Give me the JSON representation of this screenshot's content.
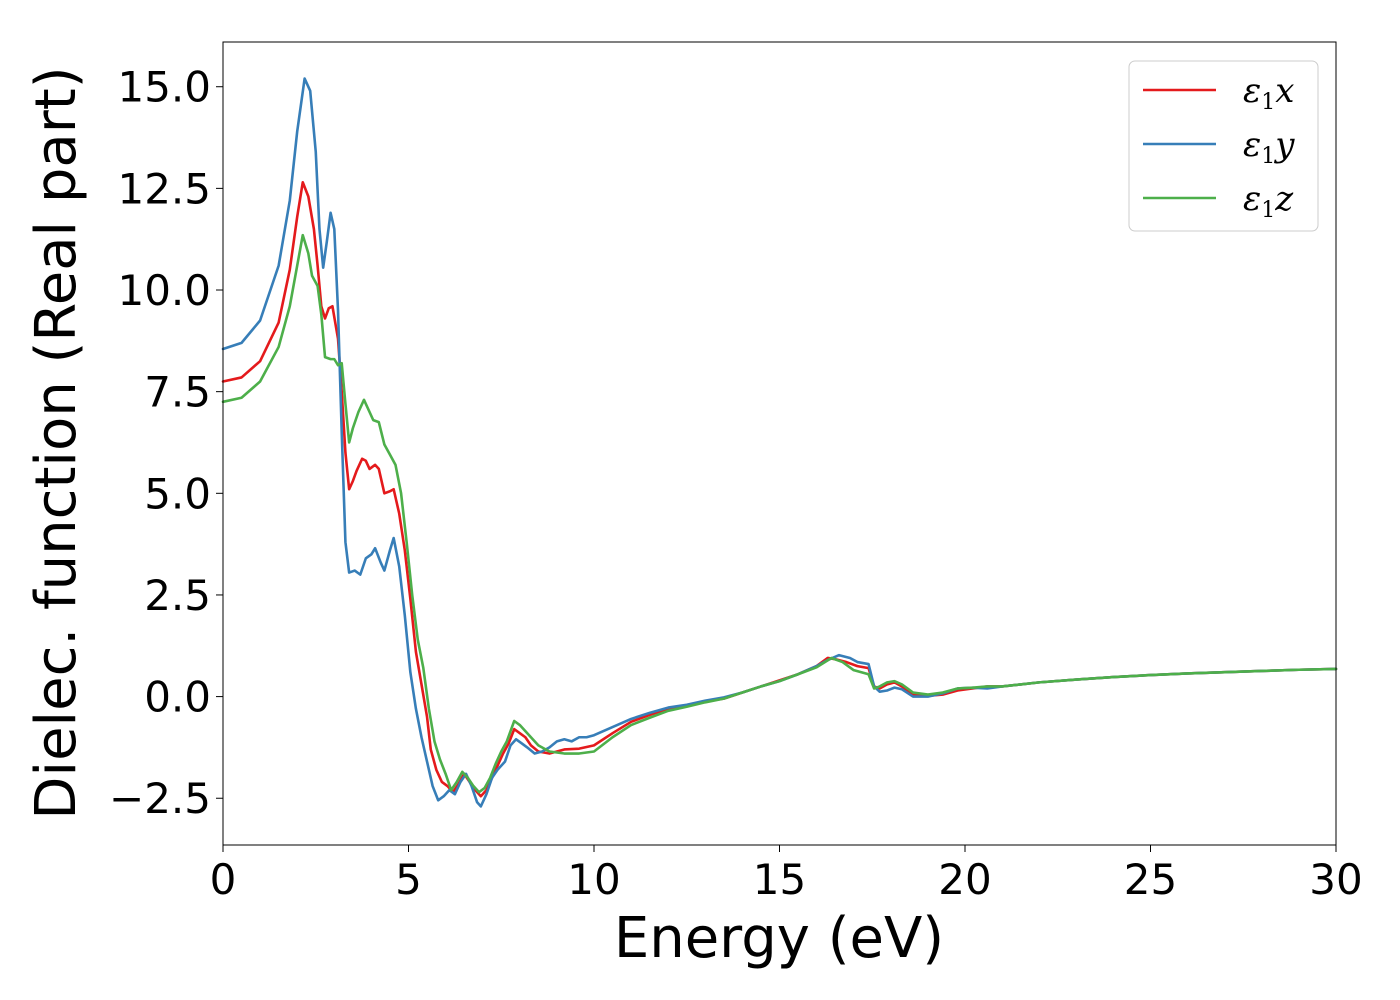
{
  "chart_data": {
    "type": "line",
    "xlabel": "Energy (eV)",
    "ylabel": "Dielec. function (Real part)",
    "xlim": [
      0,
      30
    ],
    "ylim": [
      -3.65,
      16.1
    ],
    "xticks": [
      0,
      5,
      10,
      15,
      20,
      25,
      30
    ],
    "xtick_labels": [
      "0",
      "5",
      "10",
      "15",
      "20",
      "25",
      "30"
    ],
    "yticks": [
      -2.5,
      0,
      2.5,
      5,
      7.5,
      10,
      12.5,
      15
    ],
    "ytick_labels": [
      "−2.5",
      "0.0",
      "2.5",
      "5.0",
      "7.5",
      "10.0",
      "12.5",
      "15.0"
    ],
    "grid": false,
    "legend_position": "top-right",
    "series": [
      {
        "name_base": "ε",
        "name_sub": "1",
        "name_suffix": "x",
        "color": "#e41a1c",
        "points": [
          [
            0,
            7.75
          ],
          [
            0.5,
            7.85
          ],
          [
            1.0,
            8.25
          ],
          [
            1.5,
            9.2
          ],
          [
            1.8,
            10.5
          ],
          [
            2.0,
            11.8
          ],
          [
            2.15,
            12.65
          ],
          [
            2.3,
            12.3
          ],
          [
            2.45,
            11.5
          ],
          [
            2.55,
            10.6
          ],
          [
            2.65,
            9.6
          ],
          [
            2.75,
            9.3
          ],
          [
            2.85,
            9.55
          ],
          [
            2.95,
            9.6
          ],
          [
            3.1,
            8.8
          ],
          [
            3.2,
            7.5
          ],
          [
            3.3,
            6.0
          ],
          [
            3.4,
            5.1
          ],
          [
            3.5,
            5.3
          ],
          [
            3.6,
            5.55
          ],
          [
            3.75,
            5.85
          ],
          [
            3.85,
            5.8
          ],
          [
            3.95,
            5.6
          ],
          [
            4.1,
            5.7
          ],
          [
            4.2,
            5.6
          ],
          [
            4.35,
            5.0
          ],
          [
            4.5,
            5.05
          ],
          [
            4.6,
            5.1
          ],
          [
            4.75,
            4.5
          ],
          [
            4.9,
            3.6
          ],
          [
            5.05,
            2.4
          ],
          [
            5.2,
            1.1
          ],
          [
            5.35,
            0.3
          ],
          [
            5.5,
            -0.5
          ],
          [
            5.6,
            -1.3
          ],
          [
            5.75,
            -1.8
          ],
          [
            5.9,
            -2.1
          ],
          [
            6.05,
            -2.2
          ],
          [
            6.2,
            -2.35
          ],
          [
            6.35,
            -2.15
          ],
          [
            6.5,
            -1.9
          ],
          [
            6.65,
            -2.1
          ],
          [
            6.8,
            -2.3
          ],
          [
            6.95,
            -2.45
          ],
          [
            7.1,
            -2.3
          ],
          [
            7.25,
            -2.0
          ],
          [
            7.4,
            -1.7
          ],
          [
            7.55,
            -1.4
          ],
          [
            7.7,
            -1.15
          ],
          [
            7.85,
            -0.8
          ],
          [
            8.0,
            -0.9
          ],
          [
            8.15,
            -1.0
          ],
          [
            8.3,
            -1.2
          ],
          [
            8.5,
            -1.35
          ],
          [
            8.8,
            -1.4
          ],
          [
            9.2,
            -1.3
          ],
          [
            9.6,
            -1.28
          ],
          [
            10.0,
            -1.2
          ],
          [
            10.5,
            -0.9
          ],
          [
            11.0,
            -0.62
          ],
          [
            11.5,
            -0.45
          ],
          [
            12.0,
            -0.3
          ],
          [
            12.5,
            -0.22
          ],
          [
            13.0,
            -0.12
          ],
          [
            13.5,
            -0.05
          ],
          [
            14.0,
            0.1
          ],
          [
            14.5,
            0.25
          ],
          [
            15.0,
            0.4
          ],
          [
            15.5,
            0.55
          ],
          [
            16.0,
            0.75
          ],
          [
            16.3,
            0.95
          ],
          [
            16.5,
            0.92
          ],
          [
            16.8,
            0.85
          ],
          [
            17.1,
            0.75
          ],
          [
            17.4,
            0.7
          ],
          [
            17.55,
            0.25
          ],
          [
            17.7,
            0.2
          ],
          [
            17.9,
            0.3
          ],
          [
            18.1,
            0.35
          ],
          [
            18.3,
            0.25
          ],
          [
            18.6,
            0.05
          ],
          [
            19.0,
            0.02
          ],
          [
            19.4,
            0.05
          ],
          [
            19.8,
            0.15
          ],
          [
            20.2,
            0.2
          ],
          [
            20.6,
            0.25
          ],
          [
            21.0,
            0.25
          ],
          [
            21.5,
            0.3
          ],
          [
            22.0,
            0.35
          ],
          [
            23.0,
            0.42
          ],
          [
            24.0,
            0.48
          ],
          [
            25.0,
            0.53
          ],
          [
            26.0,
            0.57
          ],
          [
            27.0,
            0.6
          ],
          [
            28.0,
            0.63
          ],
          [
            29.0,
            0.66
          ],
          [
            30.0,
            0.68
          ]
        ]
      },
      {
        "name_base": "ε",
        "name_sub": "1",
        "name_suffix": "y",
        "color": "#377eb8",
        "points": [
          [
            0,
            8.55
          ],
          [
            0.5,
            8.7
          ],
          [
            1.0,
            9.25
          ],
          [
            1.5,
            10.6
          ],
          [
            1.8,
            12.2
          ],
          [
            2.0,
            13.9
          ],
          [
            2.2,
            15.2
          ],
          [
            2.35,
            14.9
          ],
          [
            2.5,
            13.4
          ],
          [
            2.6,
            11.5
          ],
          [
            2.7,
            10.55
          ],
          [
            2.8,
            11.2
          ],
          [
            2.9,
            11.9
          ],
          [
            3.0,
            11.5
          ],
          [
            3.1,
            9.5
          ],
          [
            3.2,
            6.5
          ],
          [
            3.3,
            3.8
          ],
          [
            3.4,
            3.05
          ],
          [
            3.55,
            3.1
          ],
          [
            3.7,
            3.0
          ],
          [
            3.85,
            3.4
          ],
          [
            4.0,
            3.5
          ],
          [
            4.1,
            3.65
          ],
          [
            4.25,
            3.3
          ],
          [
            4.35,
            3.1
          ],
          [
            4.5,
            3.6
          ],
          [
            4.6,
            3.9
          ],
          [
            4.75,
            3.2
          ],
          [
            4.9,
            2.0
          ],
          [
            5.05,
            0.6
          ],
          [
            5.2,
            -0.3
          ],
          [
            5.35,
            -1.0
          ],
          [
            5.5,
            -1.6
          ],
          [
            5.65,
            -2.2
          ],
          [
            5.8,
            -2.55
          ],
          [
            5.95,
            -2.45
          ],
          [
            6.1,
            -2.3
          ],
          [
            6.25,
            -2.4
          ],
          [
            6.4,
            -2.1
          ],
          [
            6.55,
            -1.9
          ],
          [
            6.7,
            -2.2
          ],
          [
            6.85,
            -2.6
          ],
          [
            6.95,
            -2.7
          ],
          [
            7.1,
            -2.4
          ],
          [
            7.25,
            -2.0
          ],
          [
            7.4,
            -1.8
          ],
          [
            7.6,
            -1.6
          ],
          [
            7.75,
            -1.2
          ],
          [
            7.9,
            -1.05
          ],
          [
            8.05,
            -1.15
          ],
          [
            8.2,
            -1.25
          ],
          [
            8.4,
            -1.4
          ],
          [
            8.6,
            -1.35
          ],
          [
            8.8,
            -1.25
          ],
          [
            9.0,
            -1.1
          ],
          [
            9.2,
            -1.05
          ],
          [
            9.4,
            -1.1
          ],
          [
            9.6,
            -1.0
          ],
          [
            9.8,
            -1.0
          ],
          [
            10.0,
            -0.95
          ],
          [
            10.5,
            -0.75
          ],
          [
            11.0,
            -0.55
          ],
          [
            11.5,
            -0.4
          ],
          [
            12.0,
            -0.27
          ],
          [
            12.5,
            -0.2
          ],
          [
            13.0,
            -0.1
          ],
          [
            13.5,
            -0.02
          ],
          [
            14.0,
            0.1
          ],
          [
            14.5,
            0.25
          ],
          [
            15.0,
            0.38
          ],
          [
            15.5,
            0.55
          ],
          [
            16.0,
            0.75
          ],
          [
            16.3,
            0.9
          ],
          [
            16.6,
            1.02
          ],
          [
            16.9,
            0.95
          ],
          [
            17.1,
            0.85
          ],
          [
            17.4,
            0.8
          ],
          [
            17.55,
            0.25
          ],
          [
            17.7,
            0.12
          ],
          [
            17.9,
            0.15
          ],
          [
            18.1,
            0.22
          ],
          [
            18.3,
            0.18
          ],
          [
            18.6,
            0.0
          ],
          [
            19.0,
            0.0
          ],
          [
            19.4,
            0.08
          ],
          [
            19.8,
            0.2
          ],
          [
            20.2,
            0.22
          ],
          [
            20.6,
            0.2
          ],
          [
            21.0,
            0.25
          ],
          [
            21.5,
            0.3
          ],
          [
            22.0,
            0.35
          ],
          [
            23.0,
            0.42
          ],
          [
            24.0,
            0.48
          ],
          [
            25.0,
            0.53
          ],
          [
            26.0,
            0.57
          ],
          [
            27.0,
            0.6
          ],
          [
            28.0,
            0.63
          ],
          [
            29.0,
            0.66
          ],
          [
            30.0,
            0.68
          ]
        ]
      },
      {
        "name_base": "ε",
        "name_sub": "1",
        "name_suffix": "z",
        "color": "#4daf4a",
        "points": [
          [
            0,
            7.25
          ],
          [
            0.5,
            7.35
          ],
          [
            1.0,
            7.75
          ],
          [
            1.5,
            8.6
          ],
          [
            1.8,
            9.6
          ],
          [
            2.0,
            10.6
          ],
          [
            2.15,
            11.35
          ],
          [
            2.3,
            10.9
          ],
          [
            2.4,
            10.35
          ],
          [
            2.55,
            10.1
          ],
          [
            2.65,
            9.4
          ],
          [
            2.75,
            8.35
          ],
          [
            2.9,
            8.3
          ],
          [
            3.0,
            8.3
          ],
          [
            3.1,
            8.15
          ],
          [
            3.2,
            8.2
          ],
          [
            3.3,
            7.2
          ],
          [
            3.4,
            6.25
          ],
          [
            3.5,
            6.6
          ],
          [
            3.65,
            7.0
          ],
          [
            3.8,
            7.3
          ],
          [
            3.95,
            7.0
          ],
          [
            4.05,
            6.8
          ],
          [
            4.2,
            6.75
          ],
          [
            4.35,
            6.2
          ],
          [
            4.5,
            5.95
          ],
          [
            4.65,
            5.7
          ],
          [
            4.8,
            5.0
          ],
          [
            4.95,
            3.8
          ],
          [
            5.1,
            2.5
          ],
          [
            5.25,
            1.4
          ],
          [
            5.4,
            0.7
          ],
          [
            5.55,
            -0.3
          ],
          [
            5.7,
            -1.1
          ],
          [
            5.85,
            -1.55
          ],
          [
            6.0,
            -1.9
          ],
          [
            6.15,
            -2.3
          ],
          [
            6.3,
            -2.1
          ],
          [
            6.45,
            -1.85
          ],
          [
            6.6,
            -2.0
          ],
          [
            6.75,
            -2.2
          ],
          [
            6.9,
            -2.35
          ],
          [
            7.05,
            -2.25
          ],
          [
            7.2,
            -2.0
          ],
          [
            7.35,
            -1.65
          ],
          [
            7.5,
            -1.35
          ],
          [
            7.65,
            -1.1
          ],
          [
            7.85,
            -0.6
          ],
          [
            8.0,
            -0.7
          ],
          [
            8.15,
            -0.85
          ],
          [
            8.3,
            -1.0
          ],
          [
            8.5,
            -1.2
          ],
          [
            8.8,
            -1.35
          ],
          [
            9.2,
            -1.4
          ],
          [
            9.6,
            -1.4
          ],
          [
            10.0,
            -1.35
          ],
          [
            10.5,
            -1.0
          ],
          [
            11.0,
            -0.7
          ],
          [
            11.5,
            -0.52
          ],
          [
            12.0,
            -0.35
          ],
          [
            12.5,
            -0.25
          ],
          [
            13.0,
            -0.14
          ],
          [
            13.5,
            -0.05
          ],
          [
            14.0,
            0.1
          ],
          [
            14.5,
            0.25
          ],
          [
            15.0,
            0.38
          ],
          [
            15.5,
            0.55
          ],
          [
            16.0,
            0.72
          ],
          [
            16.4,
            0.95
          ],
          [
            16.7,
            0.85
          ],
          [
            17.0,
            0.65
          ],
          [
            17.4,
            0.55
          ],
          [
            17.55,
            0.2
          ],
          [
            17.7,
            0.25
          ],
          [
            17.9,
            0.35
          ],
          [
            18.1,
            0.38
          ],
          [
            18.3,
            0.3
          ],
          [
            18.6,
            0.1
          ],
          [
            19.0,
            0.05
          ],
          [
            19.4,
            0.1
          ],
          [
            19.8,
            0.2
          ],
          [
            20.2,
            0.22
          ],
          [
            20.6,
            0.25
          ],
          [
            21.0,
            0.25
          ],
          [
            21.5,
            0.3
          ],
          [
            22.0,
            0.35
          ],
          [
            23.0,
            0.42
          ],
          [
            24.0,
            0.48
          ],
          [
            25.0,
            0.53
          ],
          [
            26.0,
            0.57
          ],
          [
            27.0,
            0.6
          ],
          [
            28.0,
            0.63
          ],
          [
            29.0,
            0.66
          ],
          [
            30.0,
            0.68
          ]
        ]
      }
    ]
  }
}
